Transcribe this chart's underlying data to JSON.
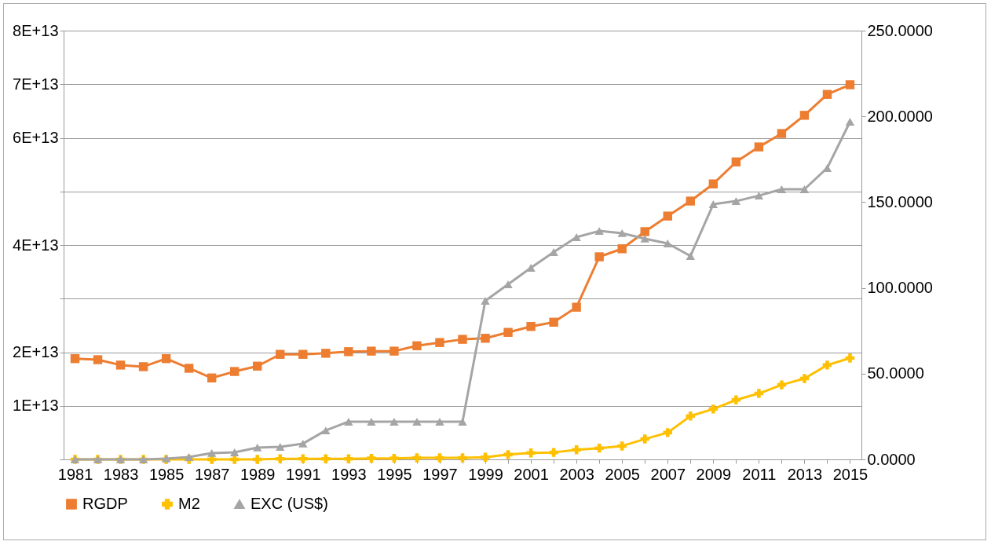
{
  "chart_data": {
    "type": "line",
    "categories": [
      "1981",
      null,
      "1983",
      null,
      "1985",
      null,
      "1987",
      null,
      "1989",
      null,
      "1991",
      null,
      "1993",
      null,
      "1995",
      null,
      "1997",
      null,
      "1999",
      null,
      "2001",
      null,
      "2003",
      null,
      "2005",
      null,
      "2007",
      null,
      "2009",
      null,
      "2011",
      null,
      "2013",
      null,
      "2015"
    ],
    "series": [
      {
        "name": "RGDP",
        "color": "#ed7d31",
        "marker": "square",
        "values": [
          18800000000000,
          18600000000000,
          17600000000000,
          17300000000000,
          18800000000000,
          17000000000000,
          15200000000000,
          16400000000000,
          17400000000000,
          19600000000000,
          19600000000000,
          19800000000000,
          20100000000000,
          20200000000000,
          20200000000000,
          21200000000000,
          21800000000000,
          22400000000000,
          22600000000000,
          23700000000000,
          24800000000000,
          25600000000000,
          28400000000000,
          37800000000000,
          39300000000000,
          42500000000000,
          45400000000000,
          48200000000000,
          51400000000000,
          55500000000000,
          58300000000000,
          60800000000000,
          64200000000000,
          68100000000000,
          69900000000000
        ]
      },
      {
        "name": "M2",
        "color": "#ffc000",
        "marker": "cross",
        "values": [
          0,
          0,
          0,
          0,
          0,
          0,
          0,
          0,
          0,
          100000000000,
          100000000000,
          100000000000,
          100000000000,
          200000000000,
          200000000000,
          300000000000,
          300000000000,
          300000000000,
          400000000000,
          900000000000,
          1200000000000,
          1300000000000,
          1800000000000,
          2100000000000,
          2500000000000,
          3800000000000,
          5000000000000,
          8100000000000,
          9400000000000,
          11100000000000,
          12300000000000,
          13900000000000,
          15100000000000,
          17600000000000,
          18900000000000
        ]
      },
      {
        "name": "EXC (US$)",
        "color": "#a5a5a5",
        "marker": "triangle",
        "axis": "y2",
        "values": [
          0,
          0,
          0,
          0,
          0.5,
          1.4,
          3.7,
          4.1,
          6.9,
          7.3,
          9.2,
          16.9,
          22,
          22,
          22,
          22,
          22,
          22,
          92.5,
          102.1,
          111.7,
          120.9,
          129.6,
          133.2,
          131.9,
          128.7,
          125.9,
          118.6,
          148.8,
          150.6,
          153.8,
          157.5,
          157.5,
          169.9,
          196.9
        ]
      }
    ],
    "ylim": [
      0,
      80000000000000
    ],
    "yticks": [
      {
        "value": 0,
        "label": null
      },
      {
        "value": 10000000000000,
        "label": "1E+13"
      },
      {
        "value": 20000000000000,
        "label": "2E+13"
      },
      {
        "value": 30000000000000,
        "label": null
      },
      {
        "value": 40000000000000,
        "label": "4E+13"
      },
      {
        "value": 50000000000000,
        "label": null
      },
      {
        "value": 60000000000000,
        "label": "6E+13"
      },
      {
        "value": 70000000000000,
        "label": "7E+13"
      },
      {
        "value": 80000000000000,
        "label": "8E+13"
      }
    ],
    "y2lim": [
      0,
      250
    ],
    "y2ticks": [
      {
        "value": 0,
        "label": "0.0000"
      },
      {
        "value": 50,
        "label": "50.0000"
      },
      {
        "value": 100,
        "label": "100.0000"
      },
      {
        "value": 150,
        "label": "150.0000"
      },
      {
        "value": 200,
        "label": "200.0000"
      },
      {
        "value": 250,
        "label": "250.0000"
      }
    ],
    "grid": "y",
    "legend": "bottom",
    "line_style": "solid"
  }
}
